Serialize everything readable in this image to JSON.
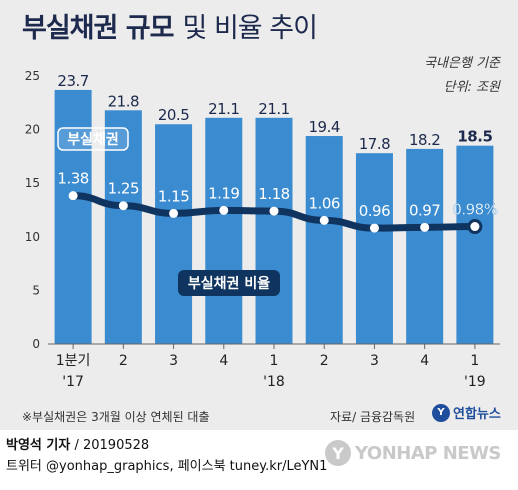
{
  "header": {
    "title_main": "부실채권 규모",
    "title_sub": "및 비율 추이",
    "scope": "국내은행 기준",
    "unit": "단위: 조원"
  },
  "chart_data": {
    "type": "bar",
    "categories": [
      "1분기",
      "2",
      "3",
      "4",
      "1",
      "2",
      "3",
      "4",
      "1"
    ],
    "year_labels": [
      "'17",
      "",
      "",
      "",
      "'18",
      "",
      "",
      "",
      "'19"
    ],
    "series": [
      {
        "name": "부실채권",
        "type": "bar",
        "values": [
          23.7,
          21.8,
          20.5,
          21.1,
          21.1,
          19.4,
          17.8,
          18.2,
          18.5
        ],
        "labels": [
          "23.7",
          "21.8",
          "20.5",
          "21.1",
          "21.1",
          "19.4",
          "17.8",
          "18.2",
          "18.5"
        ]
      },
      {
        "name": "부실채권 비율",
        "type": "line",
        "values": [
          1.38,
          1.25,
          1.15,
          1.19,
          1.18,
          1.06,
          0.96,
          0.97,
          0.98
        ],
        "labels": [
          "1.38",
          "1.25",
          "1.15",
          "1.19",
          "1.18",
          "1.06",
          "0.96",
          "0.97",
          "0.98%"
        ]
      }
    ],
    "ylim": [
      0,
      25
    ],
    "yticks": [
      0,
      5,
      10,
      15,
      20,
      25
    ],
    "bar_color": "#3b8bd0",
    "line_color": "#0f3460",
    "grid": false
  },
  "footer": {
    "note": "※부실채권은 3개월 이상 연체된 대출",
    "source": "자료/ 금융감독원",
    "logo_mark": "Y",
    "logo_text": "연합뉴스"
  },
  "credit": {
    "reporter": "박영석 기자",
    "date": "/ 20190528",
    "sns": "트위터 @yonhap_graphics, 페이스북 tuney.kr/LeYN1"
  },
  "watermark": {
    "mark": "Y",
    "text": "YONHAP NEWS"
  }
}
